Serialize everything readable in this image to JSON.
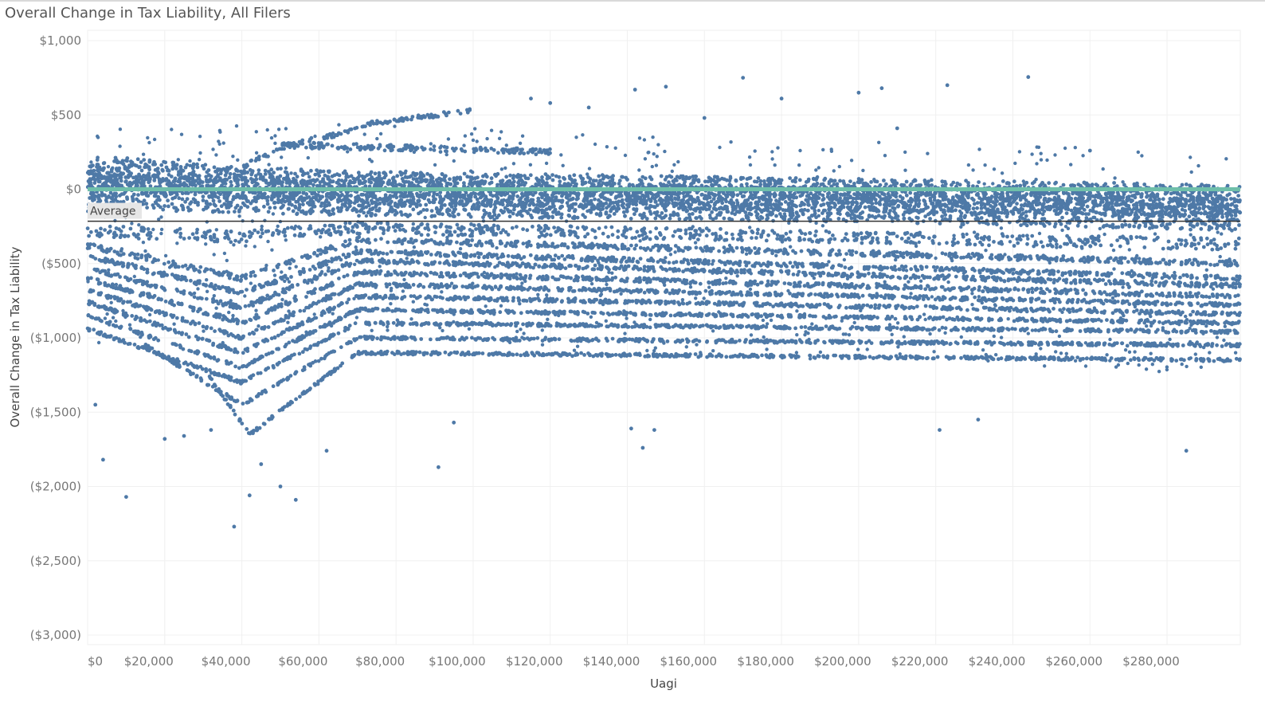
{
  "chart_data": {
    "type": "scatter",
    "title": "Overall Change in Tax Liability, All Filers",
    "xlabel": "Uagi",
    "ylabel": "Overall Change in Tax Liability",
    "xlim": [
      0,
      299000
    ],
    "ylim": [
      -3000,
      1000
    ],
    "x_ticks": [
      0,
      20000,
      40000,
      60000,
      80000,
      100000,
      120000,
      140000,
      160000,
      180000,
      200000,
      220000,
      240000,
      260000,
      280000
    ],
    "x_tick_labels": [
      "$0",
      "$20,000",
      "$40,000",
      "$60,000",
      "$80,000",
      "$100,000",
      "$120,000",
      "$140,000",
      "$160,000",
      "$180,000",
      "$200,000",
      "$220,000",
      "$240,000",
      "$260,000",
      "$280,000"
    ],
    "y_ticks": [
      1000,
      500,
      0,
      -500,
      -1000,
      -1500,
      -2000,
      -2500,
      -3000
    ],
    "y_tick_labels": [
      "$1,000",
      "$500",
      "$0",
      "($500)",
      "($1,000)",
      "($1,500)",
      "($2,000)",
      "($2,500)",
      "($3,000)"
    ],
    "reference_lines": [
      {
        "axis": "y",
        "value": 0,
        "color": "#6fbfaa"
      },
      {
        "axis": "y",
        "value": -215,
        "label": "Average",
        "color": "#333333"
      }
    ],
    "point_color": "#4e79a7",
    "bands": [
      {
        "x": [
          0,
          40000,
          70000,
          150000,
          299000
        ],
        "y": [
          120,
          40,
          10,
          -20,
          -80
        ],
        "spread": 110
      },
      {
        "x": [
          0,
          40000,
          70000,
          200000,
          299000
        ],
        "y": [
          -10,
          -40,
          -60,
          -100,
          -160
        ],
        "spread": 120
      },
      {
        "x": [
          0,
          40000,
          70000,
          299000
        ],
        "y": [
          -280,
          -320,
          -260,
          -370
        ],
        "spread": 40
      },
      {
        "x": [
          0,
          40000,
          70000,
          299000
        ],
        "y": [
          -380,
          -600,
          -340,
          -500
        ],
        "spread": 18
      },
      {
        "x": [
          0,
          40000,
          70000,
          299000
        ],
        "y": [
          -450,
          -700,
          -420,
          -600
        ],
        "spread": 15
      },
      {
        "x": [
          0,
          40000,
          70000,
          299000
        ],
        "y": [
          -530,
          -800,
          -480,
          -650
        ],
        "spread": 15
      },
      {
        "x": [
          0,
          40000,
          70000,
          299000
        ],
        "y": [
          -600,
          -900,
          -560,
          -720
        ],
        "spread": 15
      },
      {
        "x": [
          0,
          40000,
          70000,
          299000
        ],
        "y": [
          -680,
          -1000,
          -640,
          -780
        ],
        "spread": 12
      },
      {
        "x": [
          0,
          40000,
          70000,
          299000
        ],
        "y": [
          -760,
          -1100,
          -720,
          -840
        ],
        "spread": 12
      },
      {
        "x": [
          0,
          40000,
          70000,
          299000
        ],
        "y": [
          -850,
          -1200,
          -810,
          -900
        ],
        "spread": 10
      },
      {
        "x": [
          0,
          40000,
          70000,
          299000
        ],
        "y": [
          -940,
          -1300,
          -900,
          -960
        ],
        "spread": 10
      },
      {
        "x": [
          15000,
          40000,
          70000,
          299000
        ],
        "y": [
          -1050,
          -1450,
          -1000,
          -1050
        ],
        "spread": 10
      },
      {
        "x": [
          30000,
          42000,
          70000,
          299000
        ],
        "y": [
          -1200,
          -1650,
          -1100,
          -1150
        ],
        "spread": 10
      },
      {
        "x": [
          40000,
          52000,
          70000
        ],
        "y": [
          150,
          300,
          400
        ],
        "spread": 15
      },
      {
        "x": [
          70000,
          100000
        ],
        "y": [
          430,
          530
        ],
        "spread": 15
      },
      {
        "x": [
          50000,
          120000
        ],
        "y": [
          300,
          250
        ],
        "spread": 20
      }
    ],
    "outliers": [
      [
        2000,
        -1450
      ],
      [
        4000,
        -1820
      ],
      [
        10000,
        -2070
      ],
      [
        20000,
        -1680
      ],
      [
        25000,
        -1660
      ],
      [
        32000,
        -1620
      ],
      [
        38000,
        -2270
      ],
      [
        42000,
        -2060
      ],
      [
        45000,
        -1850
      ],
      [
        50000,
        -2000
      ],
      [
        54000,
        -2090
      ],
      [
        62000,
        -1760
      ],
      [
        91000,
        -1870
      ],
      [
        95000,
        -1570
      ],
      [
        141000,
        -1610
      ],
      [
        144000,
        -1740
      ],
      [
        147000,
        -1620
      ],
      [
        221000,
        -1620
      ],
      [
        231000,
        -1550
      ],
      [
        285000,
        -1760
      ],
      [
        170000,
        750
      ],
      [
        244000,
        755
      ],
      [
        150000,
        690
      ],
      [
        142000,
        670
      ],
      [
        223000,
        700
      ],
      [
        206000,
        680
      ],
      [
        200000,
        650
      ],
      [
        260000,
        260
      ],
      [
        210000,
        410
      ],
      [
        180000,
        610
      ],
      [
        160000,
        480
      ],
      [
        120000,
        580
      ],
      [
        130000,
        550
      ],
      [
        115000,
        610
      ]
    ]
  }
}
